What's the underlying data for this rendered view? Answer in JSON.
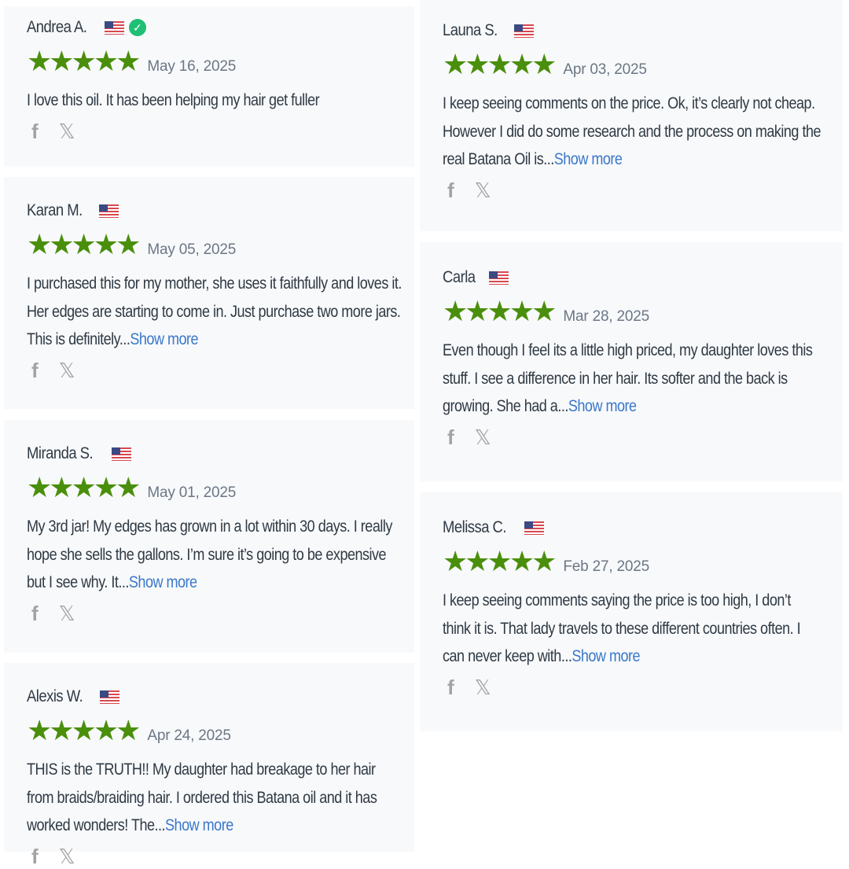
{
  "reviews": [
    {
      "name": "Andrea A.",
      "verified": true,
      "rating": 5,
      "date": "May 16, 2025",
      "text": "I love this oil. It has been helping my hair get fuller",
      "show_more": ""
    },
    {
      "name": "Karan M.",
      "verified": false,
      "rating": 5,
      "date": "May 05, 2025",
      "text": "I purchased this for my mother, she uses it faithfully and loves it. Her edges are starting to come in. Just purchase two more jars. This is definitely...",
      "show_more": "Show more"
    },
    {
      "name": "Miranda S.",
      "verified": false,
      "rating": 5,
      "date": "May 01, 2025",
      "text": "My 3rd jar! My edges has grown in a lot within 30 days. I really hope she sells the gallons. I’m sure it’s going to be expensive but I see why. It...",
      "show_more": "Show more"
    },
    {
      "name": "Alexis W.",
      "verified": false,
      "rating": 5,
      "date": "Apr 24, 2025",
      "text": "THIS is the TRUTH!! My daughter had breakage to her hair from braids/braiding hair. I ordered this Batana oil and it has worked wonders! The...",
      "show_more": "Show more"
    },
    {
      "name": "Launa S.",
      "verified": false,
      "rating": 5,
      "date": "Apr 03, 2025",
      "text": "I keep seeing comments on the price. Ok, it’s clearly not cheap. However I did do some research and the process on making the real Batana Oil is...",
      "show_more": "Show more"
    },
    {
      "name": "Carla",
      "verified": false,
      "rating": 5,
      "date": "Mar 28, 2025",
      "text": "Even though I feel its a little high priced, my daughter loves this stuff. I see a difference in her hair. Its softer and the back is growing. She had a...",
      "show_more": "Show more"
    },
    {
      "name": "Melissa C.",
      "verified": false,
      "rating": 5,
      "date": "Feb 27, 2025",
      "text": "I keep seeing comments saying the price is too high, I don’t think it is. That lady travels to these different countries often. I can never keep with...",
      "show_more": "Show more"
    }
  ],
  "colors": {
    "star": "#4a8f0c",
    "link": "#3a78c9",
    "card_bg": "#f8f9fb"
  },
  "icons": {
    "share": [
      "facebook-icon",
      "x-icon"
    ],
    "flag": "us-flag-icon",
    "verified": "check-circle-icon"
  }
}
